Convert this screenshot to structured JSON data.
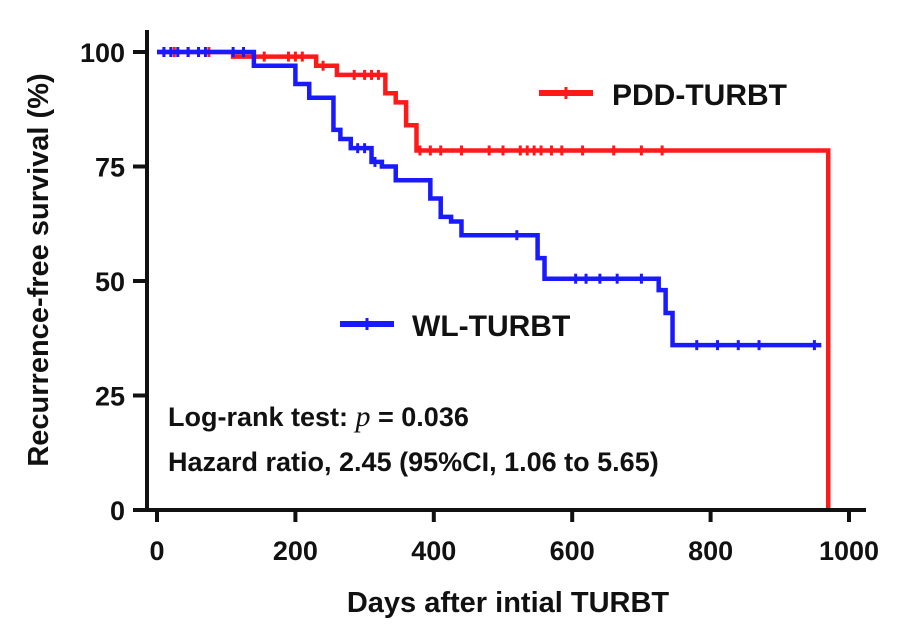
{
  "chart_data": {
    "type": "line",
    "title": "",
    "xlabel": "Days after intial TURBT",
    "ylabel": "Recurrence-free survival (%)",
    "xlim": [
      0,
      1000
    ],
    "ylim": [
      0,
      100
    ],
    "xticks": [
      0,
      200,
      400,
      600,
      800,
      1000
    ],
    "yticks": [
      0,
      25,
      50,
      75,
      100
    ],
    "xtick_labels": [
      "0",
      "200",
      "400",
      "600",
      "800",
      "1000"
    ],
    "ytick_labels": [
      "0",
      "25",
      "50",
      "75",
      "100"
    ],
    "grid": false,
    "step": true,
    "series": [
      {
        "name": "PDD-TURBT",
        "color": "#ff1a1a",
        "x": [
          0,
          110,
          230,
          260,
          330,
          345,
          360,
          375,
          970
        ],
        "y": [
          100,
          99,
          97,
          95,
          91,
          89,
          84,
          78.5,
          0
        ],
        "censor_x": [
          10,
          25,
          45,
          60,
          75,
          155,
          190,
          200,
          210,
          240,
          285,
          300,
          310,
          320,
          380,
          395,
          410,
          440,
          480,
          500,
          525,
          535,
          545,
          555,
          570,
          585,
          615,
          660,
          700,
          730
        ]
      },
      {
        "name": "WL-TURBT",
        "color": "#1a1aff",
        "x": [
          0,
          140,
          200,
          220,
          255,
          265,
          280,
          310,
          325,
          345,
          395,
          410,
          425,
          440,
          550,
          560,
          725,
          735,
          745,
          960
        ],
        "y": [
          100,
          97,
          93,
          90,
          83,
          81,
          79,
          76,
          75,
          72,
          68,
          64,
          63,
          60,
          55,
          50.5,
          48,
          43,
          36,
          36
        ],
        "censor_x": [
          10,
          20,
          30,
          45,
          60,
          70,
          110,
          125,
          290,
          300,
          315,
          520,
          605,
          620,
          640,
          665,
          700,
          780,
          810,
          840,
          870,
          950
        ]
      }
    ],
    "legend": [
      {
        "label": "PDD-TURBT",
        "color": "#ff1a1a"
      },
      {
        "label": "WL-TURBT",
        "color": "#1a1aff"
      }
    ],
    "annotations": {
      "line1_prefix": "Log-rank test: ",
      "line1_p": "p",
      "line1_suffix": " = 0.036",
      "line2": "Hazard ratio, 2.45 (95%CI, 1.06 to 5.65)"
    }
  }
}
